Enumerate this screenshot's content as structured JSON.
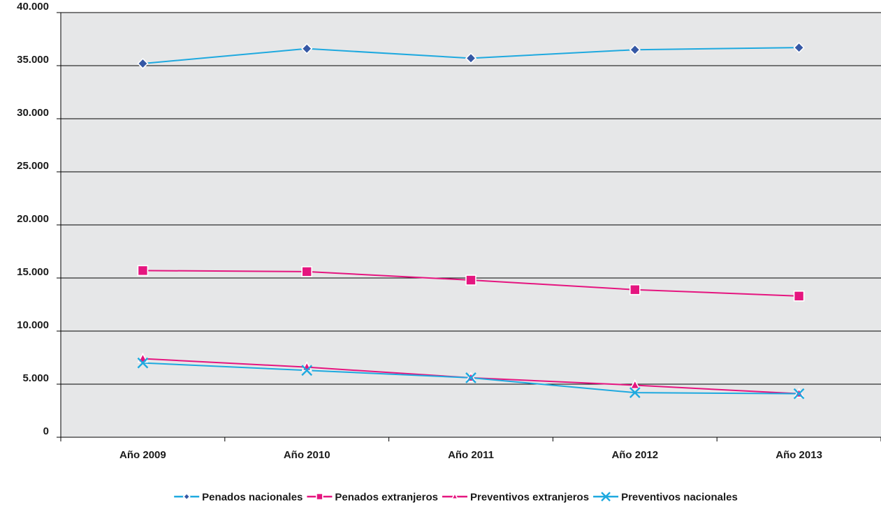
{
  "chart_data": {
    "type": "line",
    "title": "",
    "xlabel": "",
    "ylabel": "",
    "categories": [
      "Año 2009",
      "Año 2010",
      "Año 2011",
      "Año 2012",
      "Año 2013"
    ],
    "ylim": [
      0,
      40000
    ],
    "yticks": [
      0,
      5000,
      10000,
      15000,
      20000,
      25000,
      30000,
      35000,
      40000
    ],
    "ytick_labels": [
      "0",
      "5.000",
      "10.000",
      "15.000",
      "20.000",
      "25.000",
      "30.000",
      "35.000",
      "40.000"
    ],
    "grid": true,
    "legend_position": "bottom",
    "plot_background": "#e6e7e8",
    "series": [
      {
        "name": "Penados nacionales",
        "values": [
          35200,
          36600,
          35700,
          36500,
          36700
        ],
        "line_color": "#1ea9df",
        "marker": "diamond",
        "marker_color": "#3558a5"
      },
      {
        "name": "Penados extranjeros",
        "values": [
          15700,
          15600,
          14800,
          13900,
          13300
        ],
        "line_color": "#e5157f",
        "marker": "square",
        "marker_color": "#e5157f"
      },
      {
        "name": "Preventivos extranjeros",
        "values": [
          7400,
          6600,
          5600,
          4900,
          4100
        ],
        "line_color": "#e5157f",
        "marker": "triangle",
        "marker_color": "#e5157f"
      },
      {
        "name": "Preventivos nacionales",
        "values": [
          7000,
          6300,
          5600,
          4200,
          4100
        ],
        "line_color": "#1ea9df",
        "marker": "x",
        "marker_color": "#1ea9df"
      }
    ]
  }
}
